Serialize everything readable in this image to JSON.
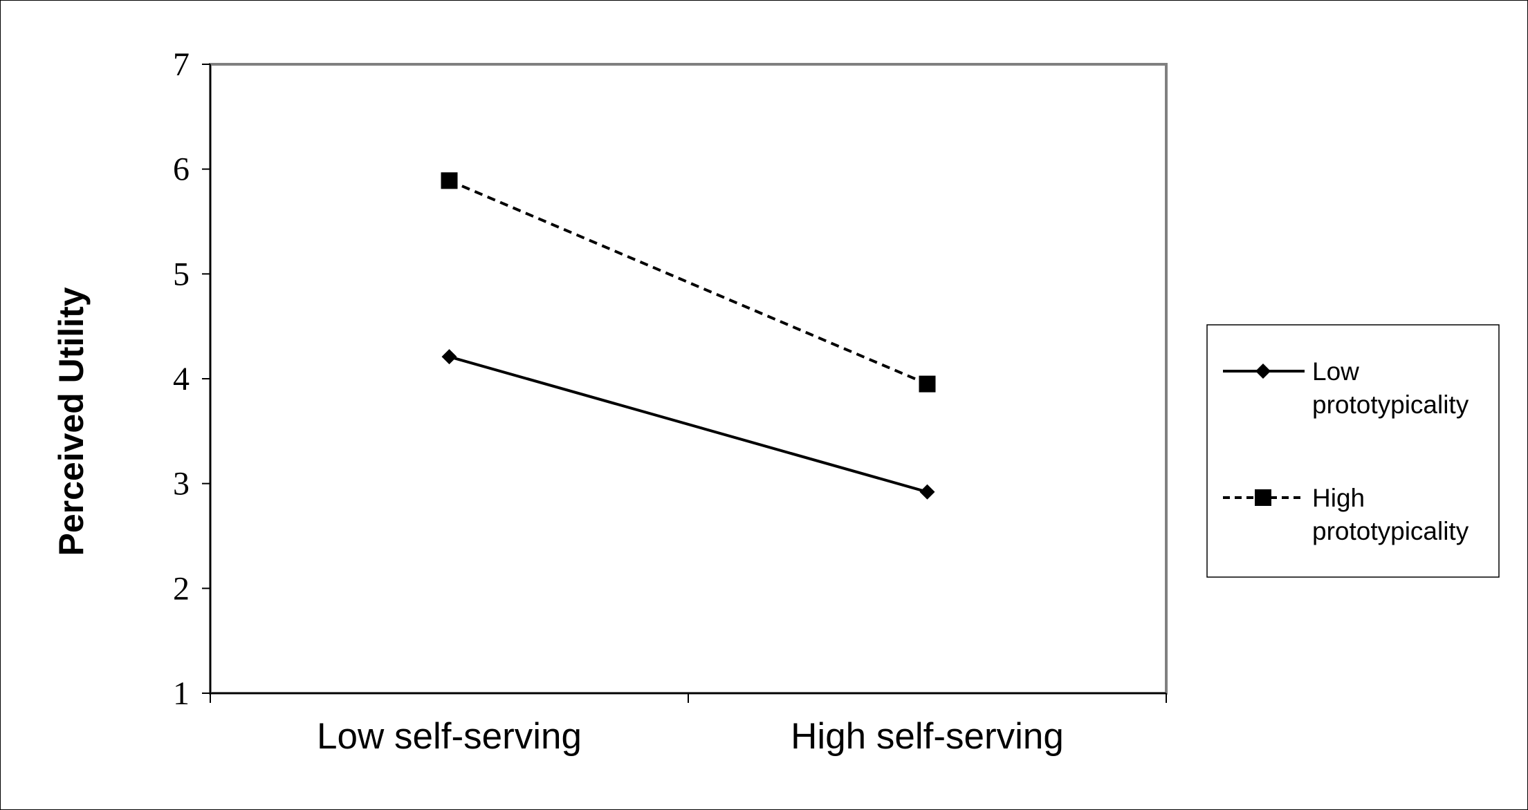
{
  "chart_data": {
    "type": "line",
    "ylabel": "Perceived Utility",
    "xlabel": "",
    "ylim": [
      1,
      7
    ],
    "yticks": [
      "1",
      "2",
      "3",
      "4",
      "5",
      "6",
      "7"
    ],
    "categories": [
      "Low self-serving",
      "High self-serving"
    ],
    "grid": false,
    "legend_position": "right",
    "series": [
      {
        "name": "Low prototypicality",
        "legend_lines": [
          "Low",
          "prototypicality"
        ],
        "values": [
          4.21,
          2.92
        ],
        "line_style": "solid",
        "marker": "diamond",
        "color": "#000000"
      },
      {
        "name": "High prototypicality",
        "legend_lines": [
          "High",
          "prototypicality"
        ],
        "values": [
          5.89,
          3.95
        ],
        "line_style": "dashed",
        "marker": "square",
        "color": "#000000"
      }
    ]
  }
}
